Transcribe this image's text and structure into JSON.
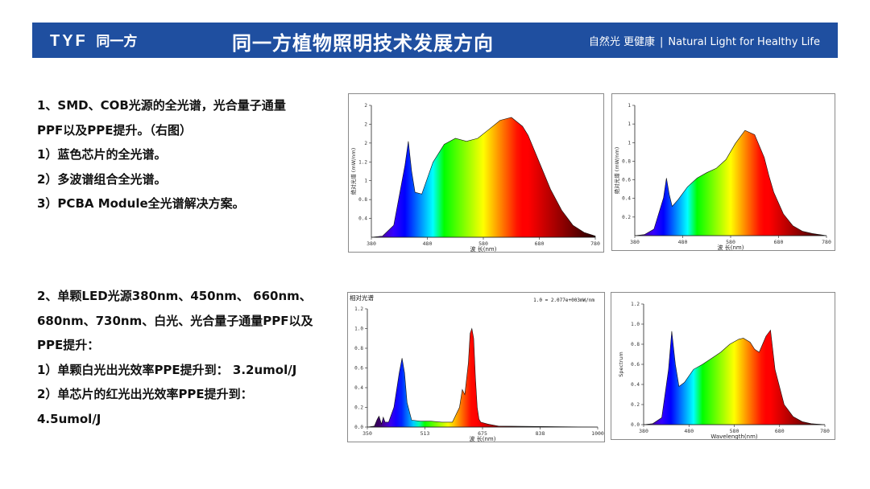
{
  "header": {
    "logo_text": "TYF",
    "logo_cn": "同一方",
    "title": "同一方植物照明技术发展方向",
    "slogan_cn": "自然光  更健康",
    "slogan_sep": "|",
    "slogan_en": "Natural Light for Healthy Life",
    "bg_color": "#1f4fa0"
  },
  "section1": {
    "lines": [
      "1、SMD、COB光源的全光谱，光合量子通量",
      "PPF以及PPE提升。（右图）",
      "1）蓝色芯片的全光谱。",
      "2）多波谱组合全光谱。",
      "3）PCBA Module全光谱解决方案。"
    ]
  },
  "section2": {
    "lines": [
      "2、单颗LED光源380nm、450nm、 660nm、",
      "680nm、730nm、白光、光合量子通量PPF以及",
      "PPE提升：",
      "1）单颗白光出光效率PPE提升到： 3.2umol/J",
      "2）单芯片的红光出光效率PPE提升到：",
      "4.5umol/J"
    ]
  },
  "chart_data": [
    {
      "type": "area",
      "ylabel": "绝对光谱 (mW/nm)",
      "xlabel": "波 长(nm)",
      "xlim": [
        380,
        780
      ],
      "ylim": [
        0,
        2.2
      ],
      "xticks": [
        "380",
        "480",
        "580",
        "680",
        "780"
      ],
      "yticks": [
        "0.4",
        "0.8",
        "1",
        "1.2",
        "2",
        "2",
        "2"
      ],
      "grid": false,
      "x": [
        380,
        400,
        420,
        440,
        446,
        452,
        458,
        470,
        490,
        510,
        530,
        550,
        570,
        590,
        610,
        630,
        650,
        660,
        680,
        700,
        720,
        740,
        760,
        780
      ],
      "y": [
        0,
        0.02,
        0.2,
        1.2,
        1.6,
        1.1,
        0.75,
        0.72,
        1.25,
        1.55,
        1.65,
        1.6,
        1.65,
        1.8,
        1.95,
        2.0,
        1.85,
        1.7,
        1.25,
        0.8,
        0.45,
        0.2,
        0.08,
        0.02
      ]
    },
    {
      "type": "area",
      "ylabel": "绝对光谱 (mW/nm)",
      "xlabel": "波 长(nm)",
      "xlim": [
        380,
        780
      ],
      "ylim": [
        0,
        1.2
      ],
      "xticks": [
        "380",
        "480",
        "580",
        "680",
        "780"
      ],
      "yticks": [
        "0.2",
        "0.4",
        "0.6",
        "0.8",
        "1",
        "1",
        "1"
      ],
      "grid": false,
      "x": [
        380,
        400,
        420,
        440,
        446,
        452,
        458,
        470,
        490,
        510,
        530,
        550,
        570,
        590,
        610,
        630,
        650,
        660,
        670,
        690,
        710,
        730,
        750,
        780
      ],
      "y": [
        0,
        0.01,
        0.06,
        0.35,
        0.53,
        0.38,
        0.27,
        0.33,
        0.45,
        0.53,
        0.58,
        0.62,
        0.7,
        0.85,
        0.97,
        0.93,
        0.72,
        0.55,
        0.4,
        0.2,
        0.09,
        0.04,
        0.02,
        0.0
      ]
    },
    {
      "type": "area",
      "title": "相对光谱",
      "annotation": "1.0 = 2.077e+003mW/nm",
      "xlabel": "波 长(nm)",
      "xlim": [
        350,
        1000
      ],
      "ylim": [
        0,
        1.2
      ],
      "xticks": [
        "350",
        "513",
        "675",
        "838",
        "1000"
      ],
      "yticks": [
        "0.0",
        "0.2",
        "0.4",
        "0.6",
        "0.8",
        "1.0",
        "1.2"
      ],
      "grid": false,
      "x": [
        350,
        370,
        378,
        383,
        390,
        395,
        400,
        410,
        425,
        440,
        448,
        455,
        462,
        475,
        500,
        530,
        560,
        590,
        610,
        618,
        625,
        635,
        640,
        645,
        650,
        655,
        660,
        665,
        670,
        690,
        720,
        1000
      ],
      "y": [
        0,
        0.01,
        0.08,
        0.11,
        0.03,
        0.1,
        0.05,
        0.05,
        0.2,
        0.55,
        0.7,
        0.55,
        0.25,
        0.07,
        0.06,
        0.06,
        0.05,
        0.05,
        0.2,
        0.38,
        0.33,
        0.65,
        0.95,
        1.0,
        0.9,
        0.5,
        0.2,
        0.08,
        0.05,
        0.03,
        0.01,
        0
      ]
    },
    {
      "type": "area",
      "ylabel": "Spectrum",
      "xlabel": "Wavelength(nm)",
      "xlim": [
        380,
        780
      ],
      "ylim": [
        0,
        1.2
      ],
      "xticks": [
        "380",
        "480",
        "580",
        "680",
        "780"
      ],
      "yticks": [
        "0.0",
        "0.2",
        "0.4",
        "0.6",
        "0.8",
        "1.0",
        "1.2"
      ],
      "grid": false,
      "x": [
        380,
        400,
        420,
        435,
        442,
        450,
        458,
        470,
        490,
        510,
        530,
        550,
        570,
        590,
        600,
        615,
        625,
        635,
        650,
        660,
        670,
        690,
        710,
        730,
        750,
        780
      ],
      "y": [
        0,
        0.01,
        0.07,
        0.55,
        0.93,
        0.6,
        0.38,
        0.42,
        0.55,
        0.6,
        0.66,
        0.72,
        0.8,
        0.85,
        0.86,
        0.82,
        0.75,
        0.72,
        0.88,
        0.94,
        0.55,
        0.2,
        0.08,
        0.03,
        0.01,
        0
      ]
    }
  ]
}
